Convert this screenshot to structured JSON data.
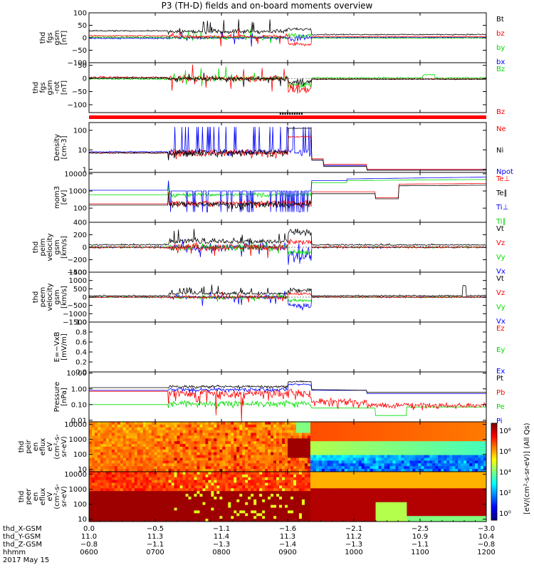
{
  "title": "P3 (TH-D) fields and on-board moments overview",
  "colors": {
    "black": "#000000",
    "red": "#ff0000",
    "green": "#00dd00",
    "blue": "#0000ff",
    "bar": "#ff0000"
  },
  "chart_data": {
    "type": "line",
    "panels": [
      {
        "id": "fgs-gsm",
        "ylabel": [
          "thd",
          "fgs",
          "gsm",
          "[nT]"
        ],
        "ylim": [
          -100,
          100
        ],
        "ticks": [
          "100",
          "50",
          "0",
          "−50",
          "−100"
        ],
        "tickvals": [
          100,
          50,
          0,
          -50,
          -100
        ],
        "legend": [
          {
            "name": "Bt",
            "color": "black"
          },
          {
            "name": "bz",
            "color": "red"
          },
          {
            "name": "by",
            "color": "green"
          },
          {
            "name": "bx",
            "color": "blue"
          }
        ]
      },
      {
        "id": "fgs-gsm-rot",
        "ylabel": [
          "thd",
          "fgs",
          "gsm",
          "-rot",
          "[nT]"
        ],
        "ylim": [
          -130,
          60
        ],
        "ticks": [
          "50",
          "0",
          "−50",
          "−100"
        ],
        "tickvals": [
          50,
          0,
          -50,
          -100
        ],
        "legend": [
          {
            "name": "Bz",
            "color": "green"
          },
          {
            "name": "Bz",
            "color": "red"
          }
        ]
      },
      {
        "id": "density",
        "ylabel": [
          "Density",
          "[cm-3]"
        ],
        "log": true,
        "ylim": [
          0.7,
          250
        ],
        "ticks": [
          "100",
          "10",
          "1"
        ],
        "tickvals": [
          100,
          10,
          1
        ],
        "legend": [
          {
            "name": "Ne",
            "color": "red"
          },
          {
            "name": "Ni",
            "color": "black"
          },
          {
            "name": "Npot",
            "color": "blue"
          }
        ]
      },
      {
        "id": "temperature",
        "ylabel": [
          "mom3",
          "[eV]"
        ],
        "log": true,
        "ylim": [
          15,
          12000
        ],
        "ticks": [
          "10000",
          "1000",
          "100"
        ],
        "tickvals": [
          10000,
          1000,
          100
        ],
        "legend": [
          {
            "name": "Te⊥",
            "color": "red"
          },
          {
            "name": "Te∥",
            "color": "black"
          },
          {
            "name": "Ti⊥",
            "color": "blue"
          },
          {
            "name": "Ti∥",
            "color": "green"
          }
        ]
      },
      {
        "id": "peim-velocity",
        "ylabel": [
          "thd",
          "peim",
          "velocity",
          "gsm",
          "[km/s]"
        ],
        "ylim": [
          -400,
          400
        ],
        "ticks": [
          "400",
          "200",
          "0",
          "−200",
          "−400"
        ],
        "tickvals": [
          400,
          200,
          0,
          -200,
          -400
        ],
        "legend": [
          {
            "name": "Vt",
            "color": "black"
          },
          {
            "name": "Vz",
            "color": "red"
          },
          {
            "name": "Vy",
            "color": "green"
          },
          {
            "name": "Vx",
            "color": "blue"
          }
        ]
      },
      {
        "id": "peem-velocity",
        "ylabel": [
          "thd",
          "peem",
          "velocity",
          "gsm",
          "[km/s]"
        ],
        "ylim": [
          -1500,
          1500
        ],
        "ticks": [
          "1500",
          "1000",
          "500",
          "0",
          "−500",
          "−1000",
          "−1500"
        ],
        "tickvals": [
          1500,
          1000,
          500,
          0,
          -500,
          -1000,
          -1500
        ],
        "legend": [
          {
            "name": "Vt",
            "color": "black"
          },
          {
            "name": "Vz",
            "color": "red"
          },
          {
            "name": "Vy",
            "color": "green"
          },
          {
            "name": "Vx",
            "color": "blue"
          }
        ]
      },
      {
        "id": "efield",
        "ylabel": [
          "E=−VxB",
          "[mV/m]"
        ],
        "ylim": [
          0,
          1
        ],
        "ticks": [
          "1.0",
          "0.8",
          "0.6",
          "0.4",
          "0.2",
          "0.0"
        ],
        "tickvals": [
          1,
          0.8,
          0.6,
          0.4,
          0.2,
          0
        ],
        "legend": [
          {
            "name": "Ez",
            "color": "red"
          },
          {
            "name": "Ey",
            "color": "green"
          },
          {
            "name": "Ex",
            "color": "blue"
          }
        ]
      },
      {
        "id": "pressure",
        "ylabel": [
          "Pressure",
          "[nPa]"
        ],
        "log": true,
        "ylim": [
          0.008,
          12
        ],
        "ticks": [
          "10.00",
          "1.00",
          "0.10",
          "0.01"
        ],
        "tickvals": [
          10,
          1,
          0.1,
          0.01
        ],
        "legend": [
          {
            "name": "Pt",
            "color": "black"
          },
          {
            "name": "Pb",
            "color": "red"
          },
          {
            "name": "Pe",
            "color": "green"
          },
          {
            "name": "Pi",
            "color": "blue"
          }
        ]
      },
      {
        "id": "peir-eflux",
        "ylabel": [
          "thd",
          "peir",
          "en",
          "eflux",
          "eV",
          "(cm²-s-",
          "sr-eV)"
        ],
        "spectrogram": true,
        "log": true,
        "ylim": [
          7,
          15000
        ],
        "ticks": [
          "10000",
          "1000",
          "100",
          "10"
        ],
        "tickvals": [
          10000,
          1000,
          100,
          10
        ]
      },
      {
        "id": "peer-eflux",
        "ylabel": [
          "thd",
          "peer",
          "en",
          "eflux",
          "eV",
          "(cm²-s-",
          "sr-eV)"
        ],
        "spectrogram": true,
        "log": true,
        "ylim": [
          7,
          15000
        ],
        "ticks": [
          "10000",
          "1000",
          "100",
          "10"
        ],
        "tickvals": [
          10000,
          1000,
          100,
          10
        ]
      }
    ],
    "colorbar": {
      "label": "[eV/(cm²-s-sr-eV)] (All Qs)",
      "ticks": [
        "10⁸",
        "10⁶",
        "10⁴",
        "10²",
        "10⁰"
      ]
    },
    "x": {
      "row_labels": [
        "thd_X-GSM",
        "thd_Y-GSM",
        "thd_Z-GSM",
        "hhmm",
        "2017 May 15"
      ],
      "ticks": [
        {
          "x": "0.0",
          "y": "11.0",
          "z": "−0.8",
          "t": "0600"
        },
        {
          "x": "−0.5",
          "y": "11.3",
          "z": "−1.1",
          "t": "0700"
        },
        {
          "x": "−1.1",
          "y": "11.4",
          "z": "−1.3",
          "t": "0800"
        },
        {
          "x": "−1.6",
          "y": "11.3",
          "z": "−1.4",
          "t": "0900"
        },
        {
          "x": "−2.1",
          "y": "11.2",
          "z": "−1.3",
          "t": "1000"
        },
        {
          "x": "−2.5",
          "y": "10.9",
          "z": "−1.1",
          "t": "1100"
        },
        {
          "x": "−3.0",
          "y": "10.4",
          "z": "−0.8",
          "t": "1200"
        }
      ]
    }
  }
}
